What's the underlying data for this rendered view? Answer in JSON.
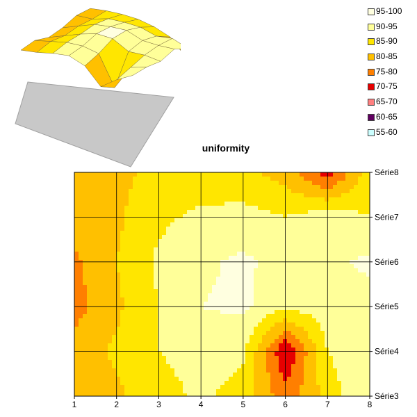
{
  "chart_data": {
    "type": "heatmap",
    "title": "uniformity",
    "x": [
      1,
      2,
      3,
      4,
      5,
      6,
      7,
      8
    ],
    "y_categories": [
      "Série3",
      "Série4",
      "Série5",
      "Série6",
      "Série7",
      "Série8"
    ],
    "bands": [
      {
        "label": "95-100",
        "min": 95,
        "max": 100,
        "color": "#FFFFE0"
      },
      {
        "label": "90-95",
        "min": 90,
        "max": 95,
        "color": "#FFFF99"
      },
      {
        "label": "85-90",
        "min": 85,
        "max": 90,
        "color": "#FFE600"
      },
      {
        "label": "80-85",
        "min": 80,
        "max": 85,
        "color": "#FFC000"
      },
      {
        "label": "75-80",
        "min": 75,
        "max": 80,
        "color": "#FF7F00"
      },
      {
        "label": "70-75",
        "min": 70,
        "max": 75,
        "color": "#E60000"
      },
      {
        "label": "65-70",
        "min": 65,
        "max": 70,
        "color": "#FF8080"
      },
      {
        "label": "60-65",
        "min": 60,
        "max": 65,
        "color": "#600060"
      },
      {
        "label": "55-60",
        "min": 55,
        "max": 60,
        "color": "#CCFFFF"
      }
    ],
    "values": [
      [
        81,
        84,
        88,
        91,
        88,
        77,
        87,
        95
      ],
      [
        82,
        86,
        90,
        92,
        91,
        70,
        90,
        95
      ],
      [
        78,
        84,
        90,
        95,
        96,
        91,
        93,
        93
      ],
      [
        79,
        85,
        91,
        94,
        96,
        93,
        94,
        96
      ],
      [
        82,
        84,
        89,
        91,
        92,
        90,
        93,
        90
      ],
      [
        81,
        84,
        86,
        87,
        86,
        83,
        72,
        88
      ]
    ],
    "grid": true
  }
}
